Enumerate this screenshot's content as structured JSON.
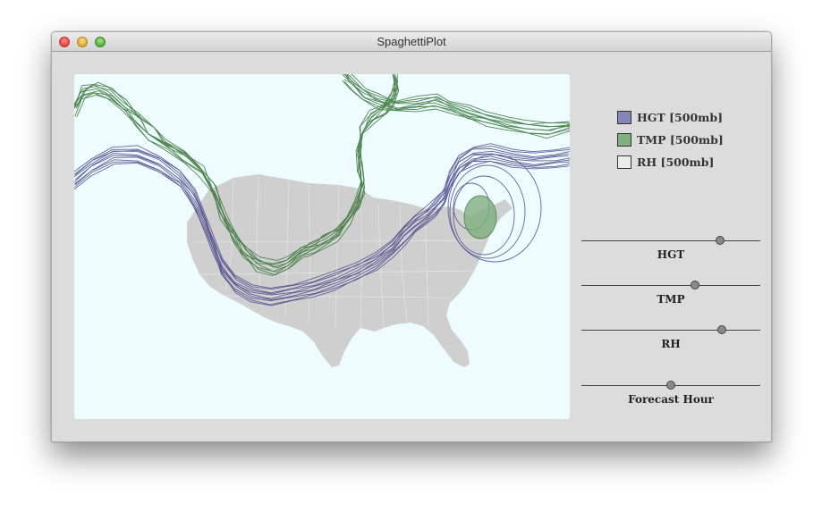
{
  "window": {
    "title": "SpaghettiPlot"
  },
  "colors": {
    "map_background": "#eefbff",
    "land": "#cfcfcf",
    "hgt": "#8585b8",
    "hgt_line": "#4a4a8a",
    "tmp": "#7fb07f",
    "tmp_line": "#3f7a3f",
    "rh": "#ebebeb"
  },
  "legend": {
    "items": [
      {
        "label": "HGT [500mb]",
        "color": "#8585b8"
      },
      {
        "label": "TMP [500mb]",
        "color": "#7fb07f"
      },
      {
        "label": "RH [500mb]",
        "color": "#ebebeb"
      }
    ]
  },
  "sliders": [
    {
      "label": "HGT",
      "value": 0.79
    },
    {
      "label": "TMP",
      "value": 0.64
    },
    {
      "label": "RH",
      "value": 0.8
    },
    {
      "label": "Forecast Hour",
      "value": 0.5
    }
  ]
}
